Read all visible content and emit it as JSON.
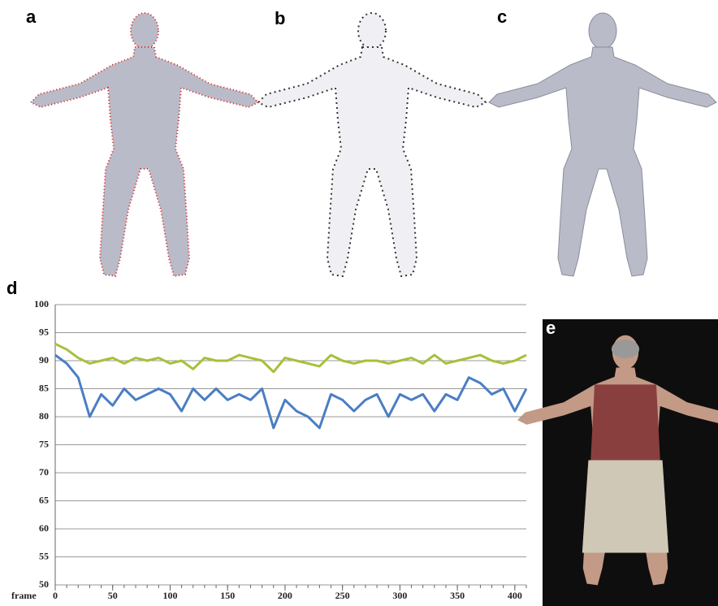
{
  "panel_labels": [
    "a",
    "b",
    "c",
    "d",
    "e"
  ],
  "chart_data": {
    "type": "line",
    "xlabel": "frame",
    "x": [
      0,
      10,
      20,
      30,
      40,
      50,
      60,
      70,
      80,
      90,
      100,
      110,
      120,
      130,
      140,
      150,
      160,
      170,
      180,
      190,
      200,
      210,
      220,
      230,
      240,
      250,
      260,
      270,
      280,
      290,
      300,
      310,
      320,
      330,
      340,
      350,
      360,
      370,
      380,
      390,
      400,
      410
    ],
    "series": [
      {
        "color": "#a5c13a",
        "values": [
          93,
          92,
          90.5,
          89.5,
          90,
          90.5,
          89.5,
          90.5,
          90,
          90.5,
          89.5,
          90,
          88.5,
          90.5,
          90,
          90,
          91,
          90.5,
          90,
          88,
          90.5,
          90,
          89.5,
          89,
          91,
          90,
          89.5,
          90,
          90,
          89.5,
          90,
          90.5,
          89.5,
          91,
          89.5,
          90,
          90.5,
          91,
          90,
          89.5,
          90,
          91
        ]
      },
      {
        "color": "#4a7ec4",
        "values": [
          91,
          89.5,
          87,
          80,
          84,
          82,
          85,
          83,
          84,
          85,
          84,
          81,
          85,
          83,
          85,
          83,
          84,
          83,
          85,
          78,
          83,
          81,
          80,
          78,
          84,
          83,
          81,
          83,
          84,
          80,
          84,
          83,
          84,
          81,
          84,
          83,
          87,
          86,
          84,
          85,
          81,
          85
        ]
      }
    ],
    "xlim": [
      0,
      410
    ],
    "xticks": [
      0,
      50,
      100,
      150,
      200,
      250,
      300,
      350,
      400
    ],
    "ylim": [
      50,
      100
    ],
    "yticks": [
      50,
      55,
      60,
      65,
      70,
      75,
      80,
      85,
      90,
      95,
      100
    ],
    "grid": true
  }
}
